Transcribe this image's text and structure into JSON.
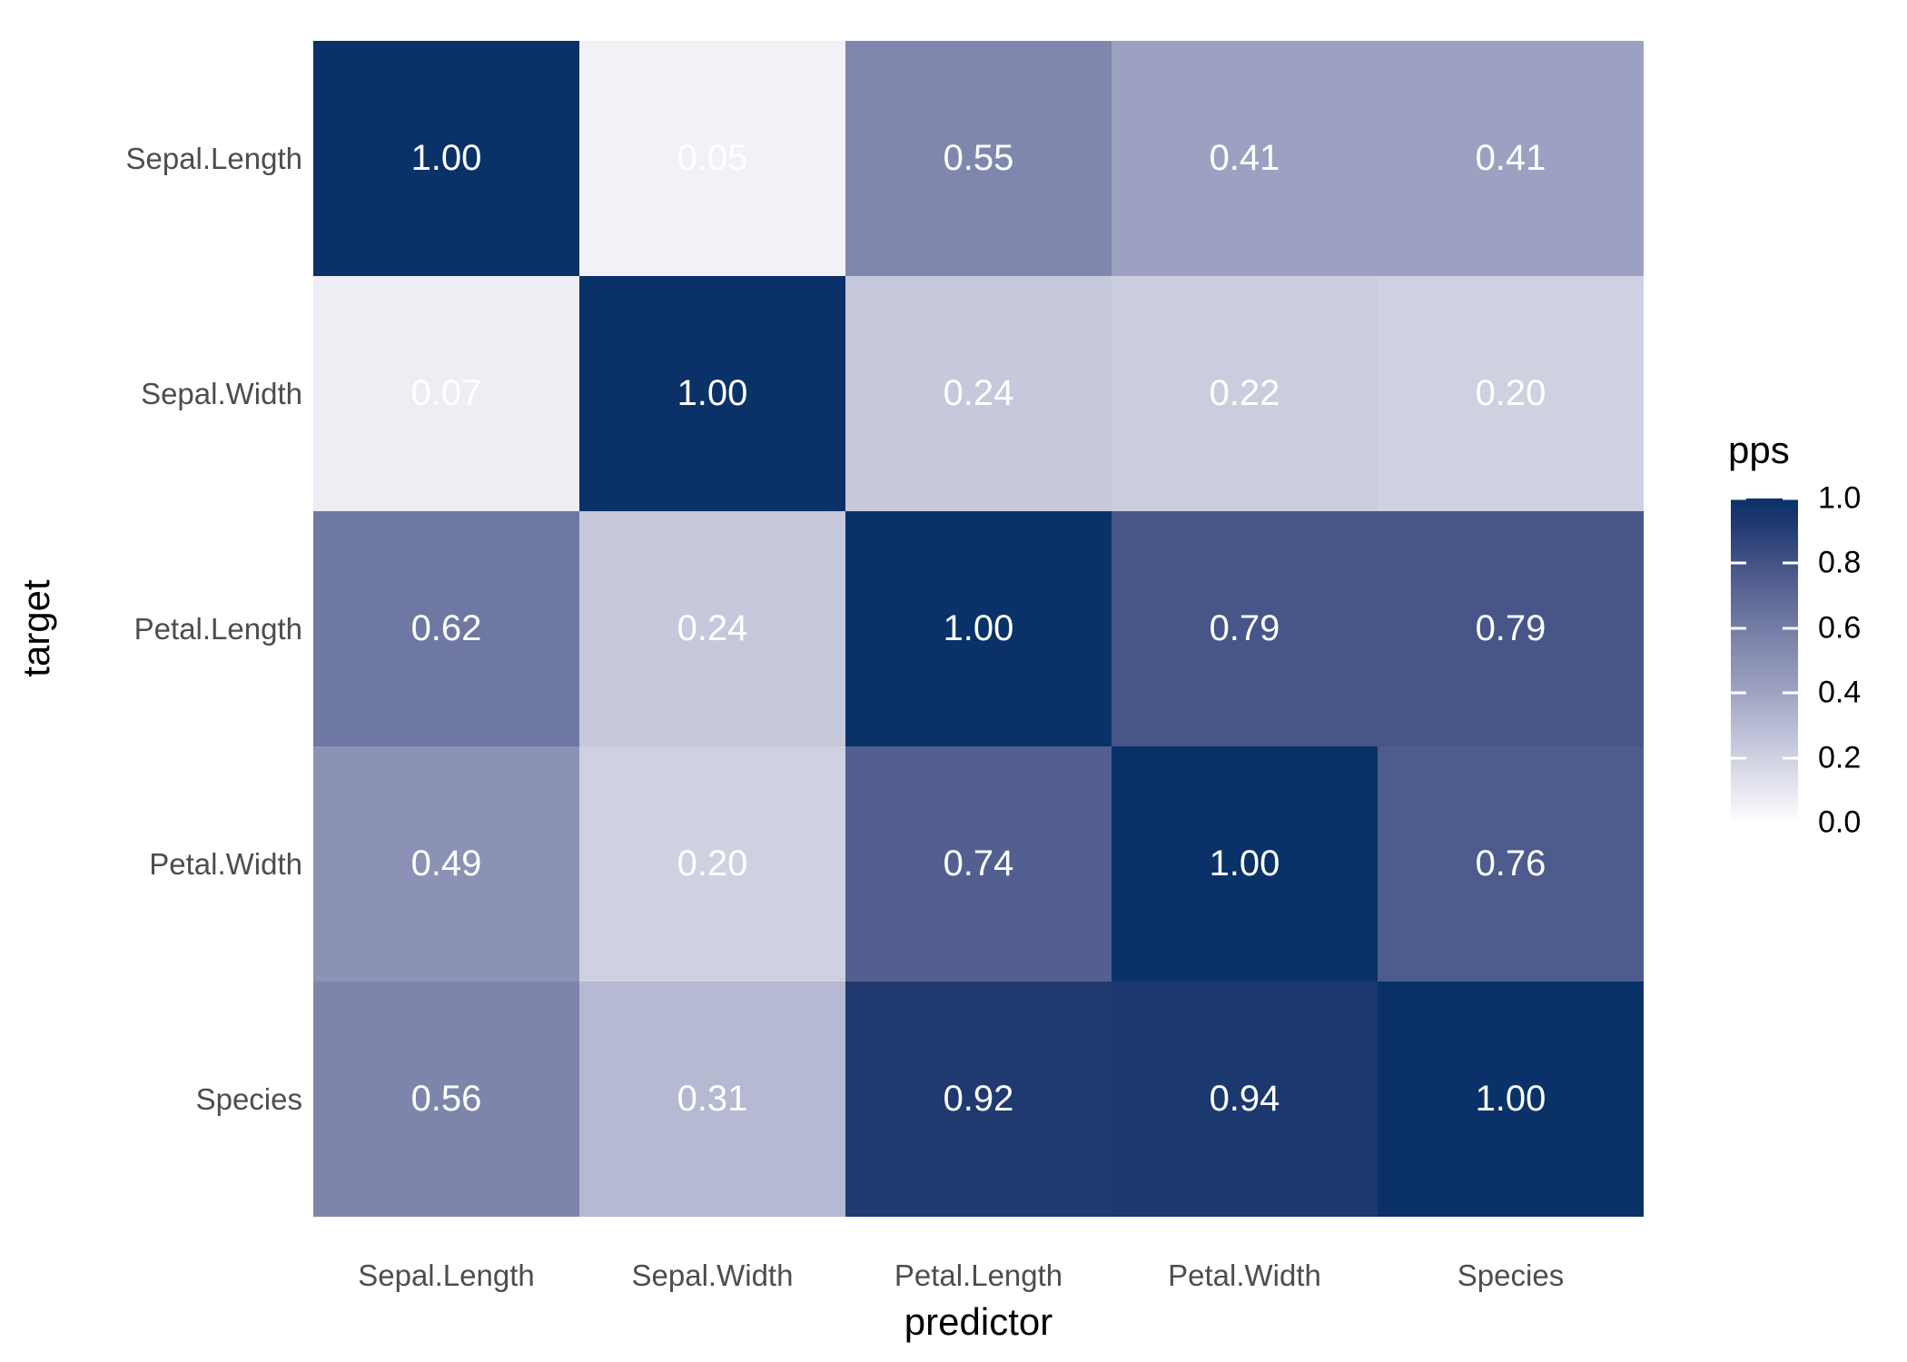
{
  "chart_data": {
    "type": "heatmap",
    "xlabel": "predictor",
    "ylabel": "target",
    "x_categories": [
      "Sepal.Length",
      "Sepal.Width",
      "Petal.Length",
      "Petal.Width",
      "Species"
    ],
    "y_categories": [
      "Sepal.Length",
      "Sepal.Width",
      "Petal.Length",
      "Petal.Width",
      "Species"
    ],
    "values": [
      [
        1.0,
        0.05,
        0.55,
        0.41,
        0.41
      ],
      [
        0.07,
        1.0,
        0.24,
        0.22,
        0.2
      ],
      [
        0.62,
        0.24,
        1.0,
        0.79,
        0.79
      ],
      [
        0.49,
        0.2,
        0.74,
        1.0,
        0.76
      ],
      [
        0.56,
        0.31,
        0.92,
        0.94,
        1.0
      ]
    ],
    "value_decimals": 2,
    "legend": {
      "title": "pps",
      "ticks": [
        1.0,
        0.8,
        0.6,
        0.4,
        0.2,
        0.0
      ],
      "tick_labels": [
        "1.0",
        "0.8",
        "0.6",
        "0.4",
        "0.2",
        "0.0"
      ],
      "position": "right",
      "range": [
        0.0,
        1.0
      ]
    },
    "color_scale": {
      "stops": [
        [
          0.0,
          "#ffffff"
        ],
        [
          0.05,
          "#f2f1f6"
        ],
        [
          0.24,
          "#c6c9dc"
        ],
        [
          0.41,
          "#9da1c1"
        ],
        [
          0.55,
          "#7f87ac"
        ],
        [
          0.79,
          "#475588"
        ],
        [
          0.92,
          "#203a71"
        ],
        [
          1.0,
          "#0a3168"
        ]
      ]
    },
    "grid": false
  },
  "colors": {
    "background": "#ffffff",
    "axis_text": "#4d4d4d",
    "axis_title": "#000000",
    "cell_text": "#ffffff"
  }
}
